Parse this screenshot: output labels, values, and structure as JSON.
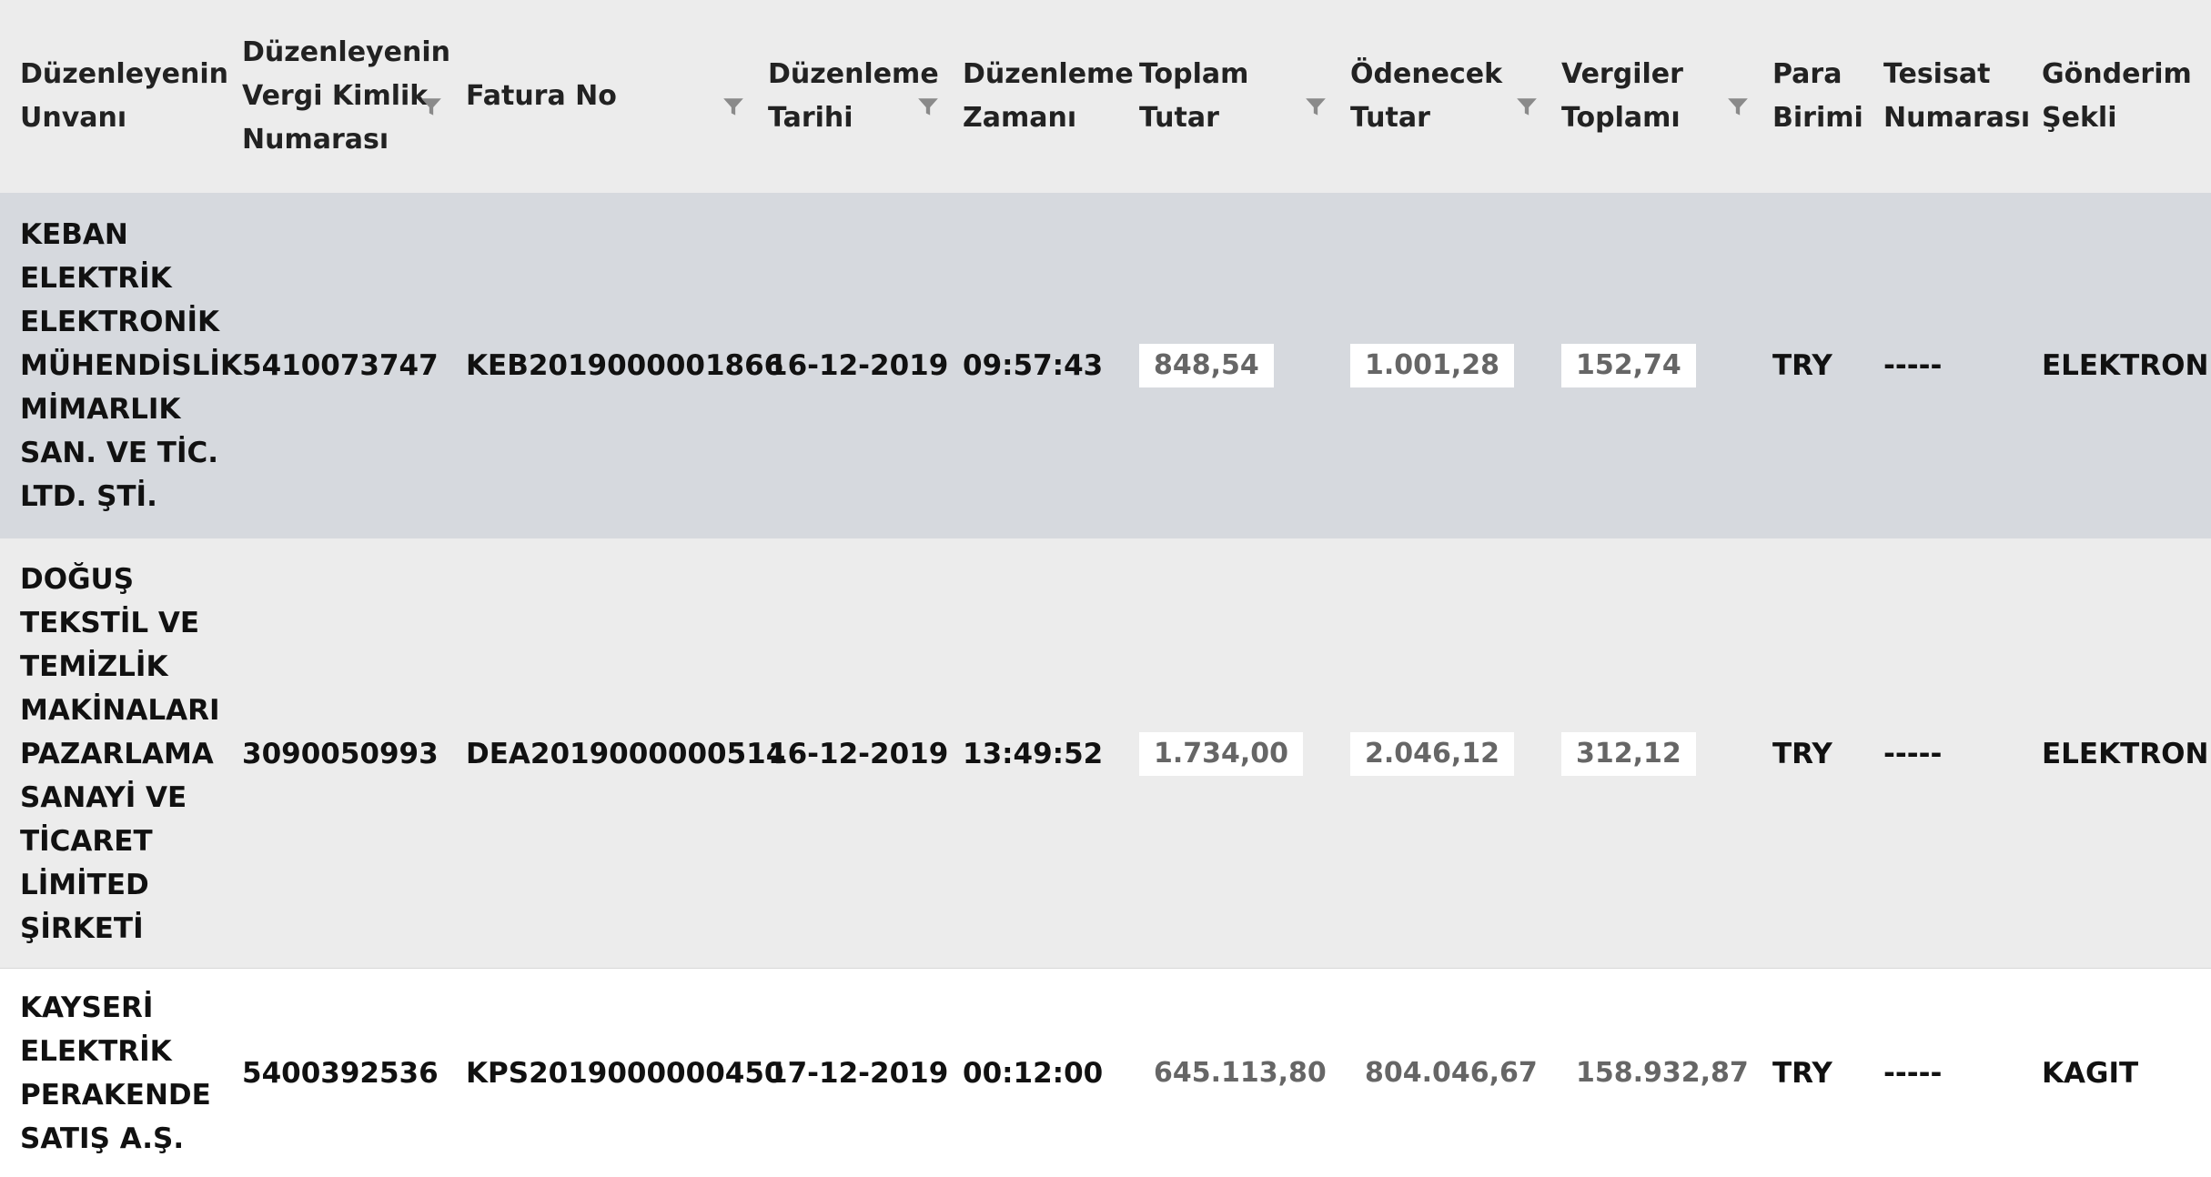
{
  "table": {
    "headers": [
      {
        "label": "Düzenleyenin\nUnvanı"
      },
      {
        "label": "Düzenleyenin\nVergi Kimlik\nNumarası"
      },
      {
        "label": "Fatura No"
      },
      {
        "label": "Düzenleme\nTarihi"
      },
      {
        "label": "Düzenleme\nZamanı"
      },
      {
        "label": "Toplam\nTutar"
      },
      {
        "label": "Ödenecek\nTutar"
      },
      {
        "label": "Vergiler\nToplamı"
      },
      {
        "label": "Para\nBirimi"
      },
      {
        "label": "Tesisat\nNumarası"
      },
      {
        "label": "Gönderim\nŞekli"
      }
    ],
    "filter_icon": "filter-icon",
    "rows": [
      {
        "issuer": "KEBAN\nELEKTRİK\nELEKTRONİK\nMÜHENDİSLİK\nMİMARLIK\nSAN. VE TİC.\nLTD. ŞTİ.",
        "tax_id": "5410073747",
        "invoice_no": "KEB2019000001866",
        "date": "16-12-2019",
        "time": "09:57:43",
        "total": "848,54",
        "payable": "1.001,28",
        "taxes": "152,74",
        "currency": "TRY",
        "installation_no": "-----",
        "delivery": "ELEKTRONIK"
      },
      {
        "issuer": "DOĞUŞ\nTEKSTİL VE\nTEMİZLİK\nMAKİNALARI\nPAZARLAMA\nSANAYİ VE\nTİCARET\nLİMİTED\nŞİRKETİ",
        "tax_id": "3090050993",
        "invoice_no": "DEA2019000000514",
        "date": "16-12-2019",
        "time": "13:49:52",
        "total": "1.734,00",
        "payable": "2.046,12",
        "taxes": "312,12",
        "currency": "TRY",
        "installation_no": "-----",
        "delivery": "ELEKTRONIK"
      },
      {
        "issuer": "KAYSERİ\nELEKTRİK\nPERAKENDE\nSATIŞ A.Ş.",
        "tax_id": "5400392536",
        "invoice_no": "KPS2019000000450",
        "date": "17-12-2019",
        "time": "00:12:00",
        "total": "645.113,80",
        "payable": "804.046,67",
        "taxes": "158.932,87",
        "currency": "TRY",
        "installation_no": "-----",
        "delivery": "KAGIT"
      }
    ]
  },
  "colors": {
    "header_bg": "#ececec",
    "row_selected_bg": "#d6d9de",
    "row_alt_bg": "#ececec",
    "row_bg": "#ffffff",
    "amount_text": "#666666",
    "filter_icon": "#8a8a8a"
  }
}
